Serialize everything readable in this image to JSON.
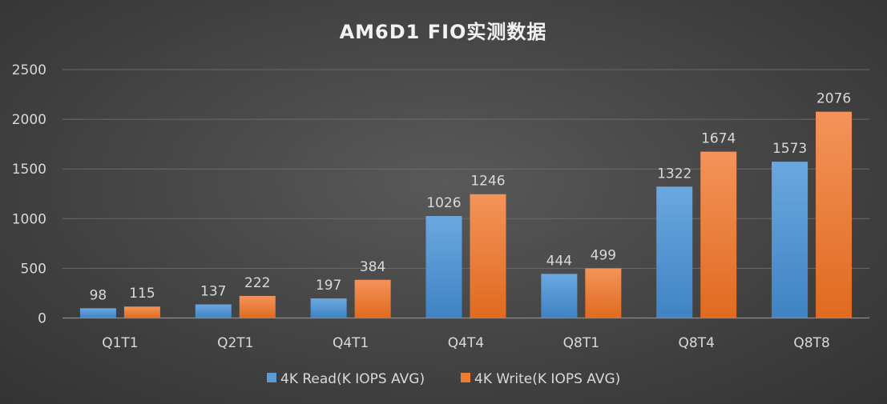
{
  "chart_data": {
    "type": "bar",
    "title": "AM6D1 FIO实测数据",
    "categories": [
      "Q1T1",
      "Q2T1",
      "Q4T1",
      "Q4T4",
      "Q8T1",
      "Q8T4",
      "Q8T8"
    ],
    "series": [
      {
        "name": "4K Read(K IOPS AVG)",
        "values": [
          98,
          137,
          197,
          1026,
          444,
          1322,
          1573
        ],
        "color": "#5b9bd5"
      },
      {
        "name": "4K Write(K IOPS AVG)",
        "values": [
          115,
          222,
          384,
          1246,
          499,
          1674,
          2076
        ],
        "color": "#ed7d31"
      }
    ],
    "yticks": [
      0,
      500,
      1000,
      1500,
      2000,
      2500
    ],
    "ylim": [
      0,
      2500
    ],
    "xlabel": "",
    "ylabel": "",
    "grid": true,
    "legend_position": "bottom"
  },
  "colors": {
    "read": "#5b9bd5",
    "write": "#ed7d31",
    "background": "#474747"
  }
}
